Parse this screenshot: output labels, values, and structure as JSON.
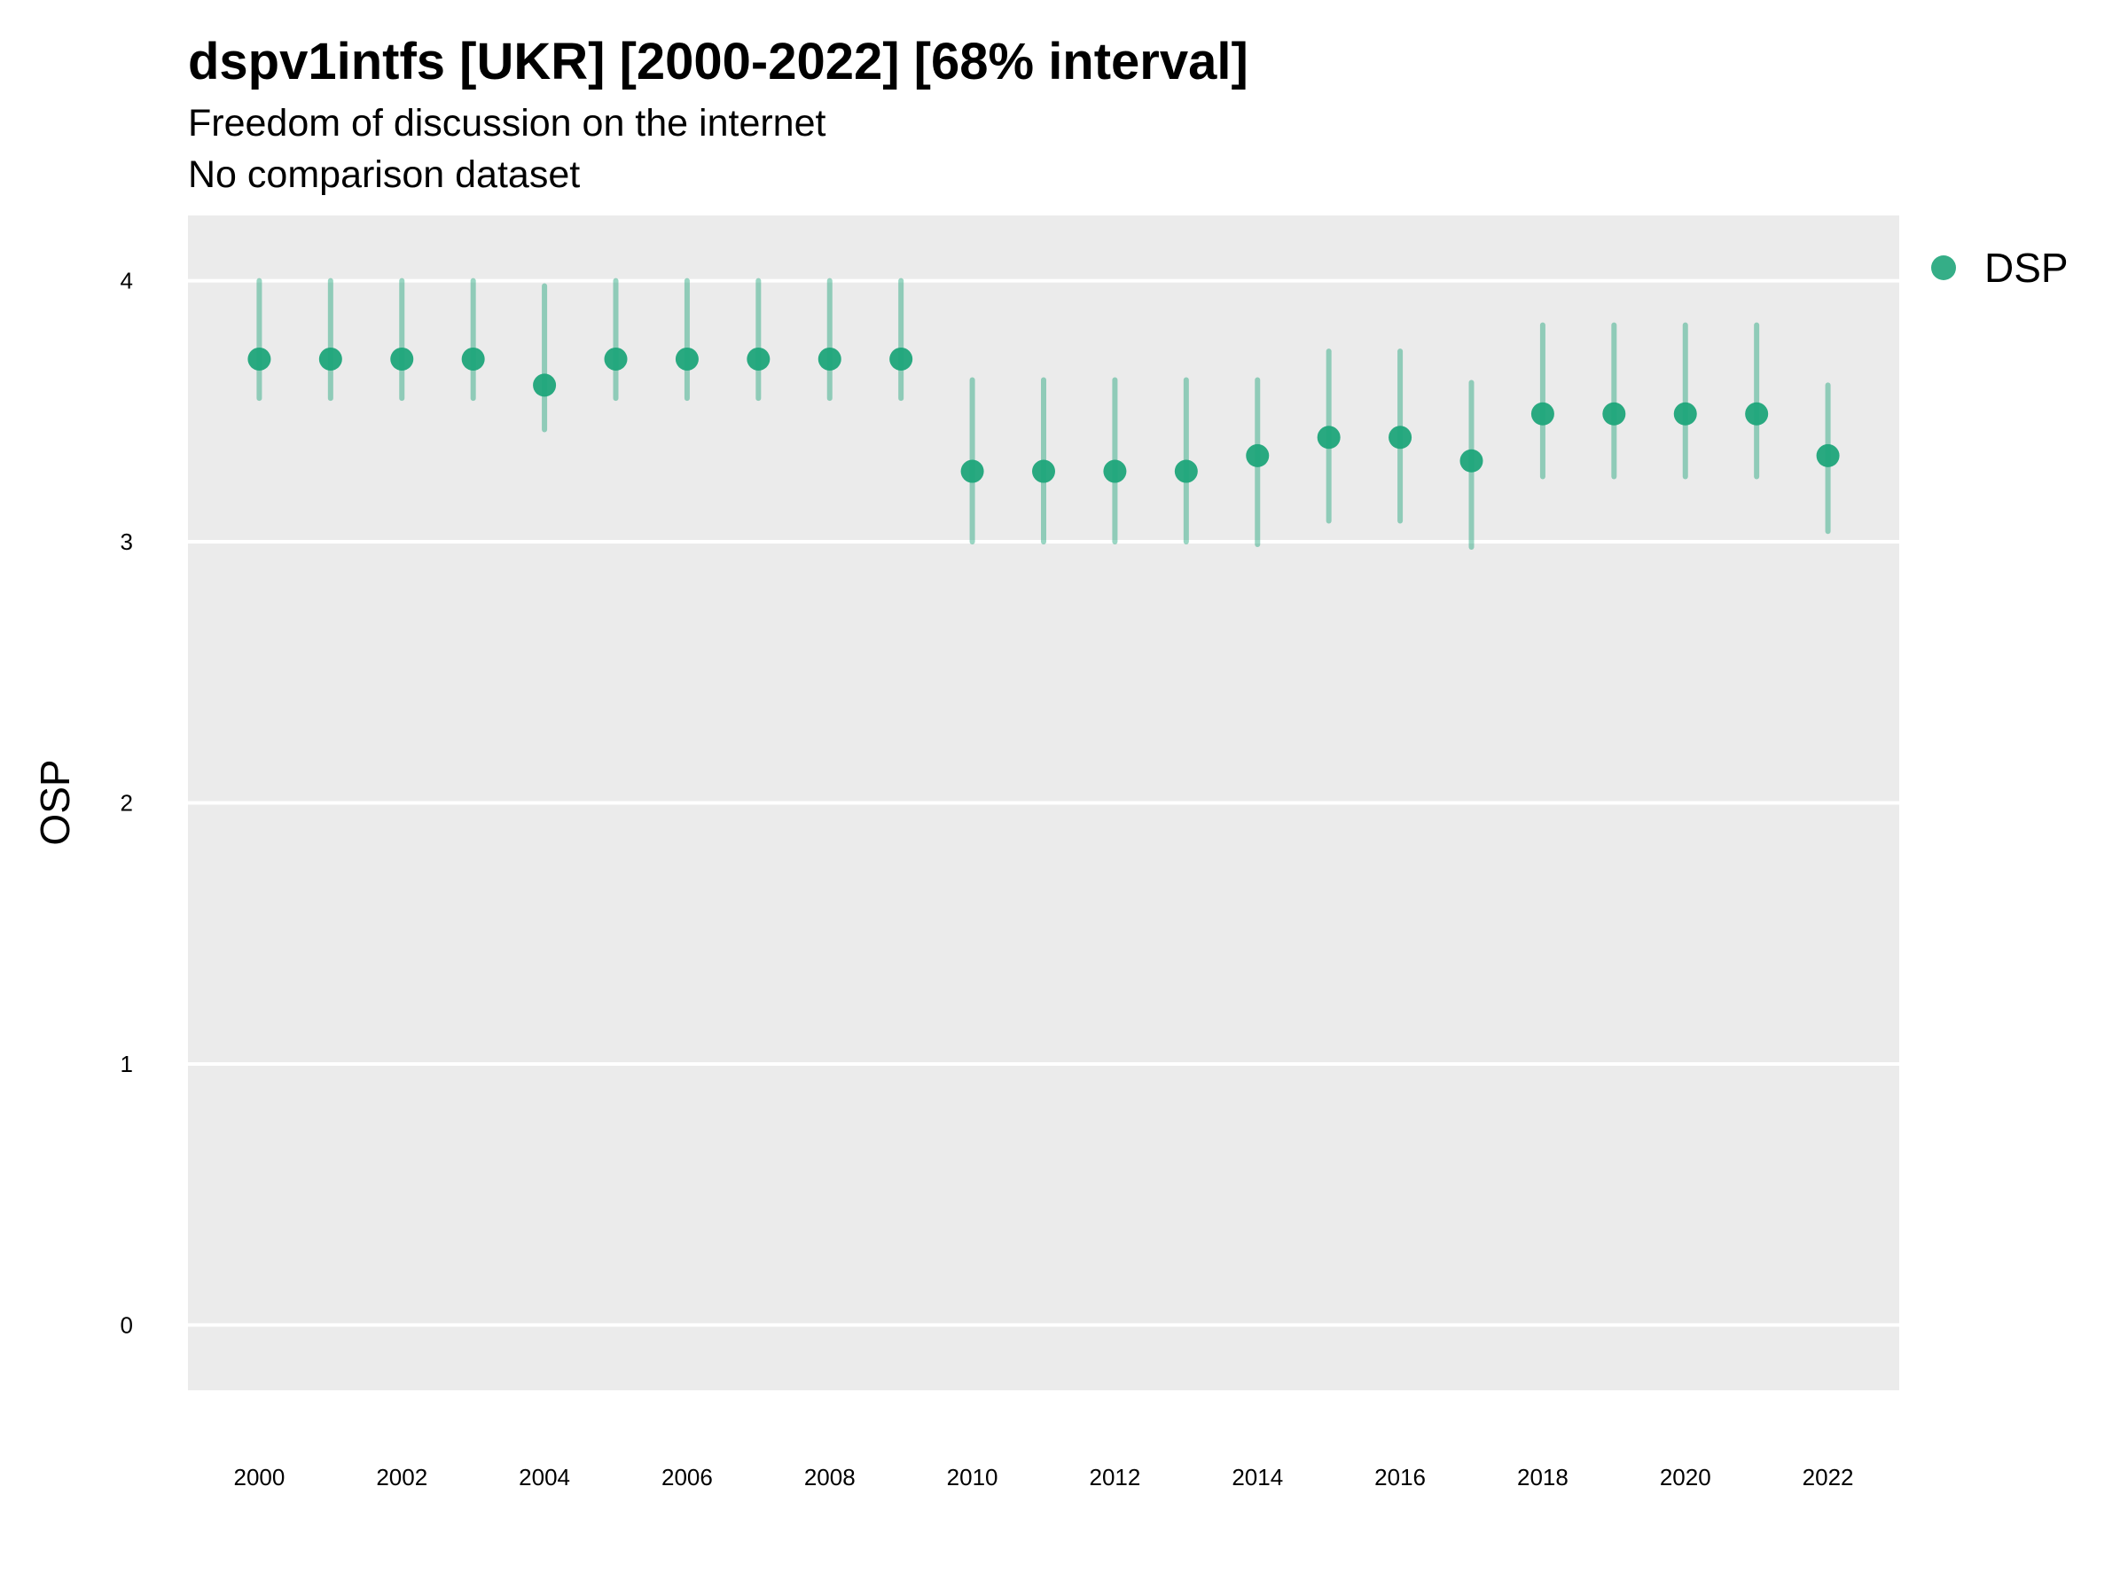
{
  "chart_data": {
    "type": "scatter",
    "title": "dspv1intfs [UKR] [2000-2022] [68% interval]",
    "subtitle": "Freedom of discussion on the internet",
    "caption": "No comparison dataset",
    "xlabel": "",
    "ylabel": "OSP",
    "ylim": [
      -0.25,
      4.25
    ],
    "xlim": [
      1999,
      2023
    ],
    "y_ticks": [
      0,
      1,
      2,
      3,
      4
    ],
    "x_ticks": [
      2000,
      2002,
      2004,
      2006,
      2008,
      2010,
      2012,
      2014,
      2016,
      2018,
      2020,
      2022
    ],
    "grid": true,
    "legend_position": "right",
    "series": [
      {
        "name": "DSP",
        "color": "#1fa57a",
        "x": [
          2000,
          2001,
          2002,
          2003,
          2004,
          2005,
          2006,
          2007,
          2008,
          2009,
          2010,
          2011,
          2012,
          2013,
          2014,
          2015,
          2016,
          2017,
          2018,
          2019,
          2020,
          2021,
          2022
        ],
        "y": [
          3.7,
          3.7,
          3.7,
          3.7,
          3.6,
          3.7,
          3.7,
          3.7,
          3.7,
          3.7,
          3.27,
          3.27,
          3.27,
          3.27,
          3.33,
          3.4,
          3.4,
          3.31,
          3.49,
          3.49,
          3.49,
          3.49,
          3.33
        ],
        "lower": [
          3.55,
          3.55,
          3.55,
          3.55,
          3.43,
          3.55,
          3.55,
          3.55,
          3.55,
          3.55,
          3.0,
          3.0,
          3.0,
          3.0,
          2.99,
          3.08,
          3.08,
          2.98,
          3.25,
          3.25,
          3.25,
          3.25,
          3.04
        ],
        "upper": [
          4.0,
          4.0,
          4.0,
          4.0,
          3.98,
          4.0,
          4.0,
          4.0,
          4.0,
          4.0,
          3.62,
          3.62,
          3.62,
          3.62,
          3.62,
          3.73,
          3.73,
          3.61,
          3.83,
          3.83,
          3.83,
          3.83,
          3.6
        ]
      }
    ]
  }
}
